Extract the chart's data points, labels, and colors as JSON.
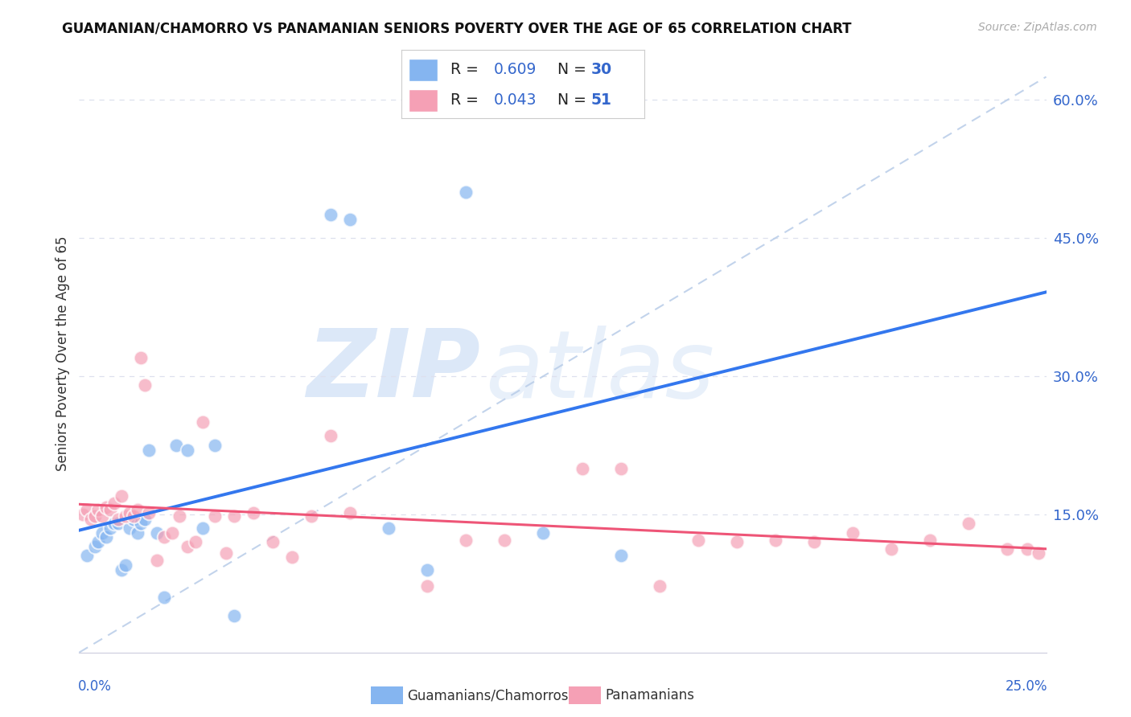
{
  "title": "GUAMANIAN/CHAMORRO VS PANAMANIAN SENIORS POVERTY OVER THE AGE OF 65 CORRELATION CHART",
  "source": "Source: ZipAtlas.com",
  "ylabel": "Seniors Poverty Over the Age of 65",
  "yticks": [
    0.0,
    0.15,
    0.3,
    0.45,
    0.6
  ],
  "ytick_labels": [
    "",
    "15.0%",
    "30.0%",
    "45.0%",
    "60.0%"
  ],
  "xlim": [
    0.0,
    0.25
  ],
  "ylim": [
    0.0,
    0.65
  ],
  "guamanian_color": "#85b5f0",
  "panamanian_color": "#f5a0b5",
  "blue_line_color": "#3377ee",
  "pink_line_color": "#ee5577",
  "ref_line_color": "#b8cce8",
  "legend_text_color": "#3366cc",
  "background_color": "#ffffff",
  "grid_color": "#dde0ee",
  "title_fontsize": 12,
  "axis_label_color": "#3366cc",
  "watermark_zip_color": "#dce8f8",
  "watermark_atlas_color": "#e8f0fa",
  "guamanian_x": [
    0.002,
    0.004,
    0.005,
    0.006,
    0.007,
    0.008,
    0.009,
    0.01,
    0.011,
    0.012,
    0.013,
    0.014,
    0.015,
    0.016,
    0.017,
    0.018,
    0.02,
    0.022,
    0.025,
    0.028,
    0.032,
    0.035,
    0.04,
    0.065,
    0.07,
    0.08,
    0.09,
    0.1,
    0.12,
    0.14
  ],
  "guamanian_y": [
    0.105,
    0.115,
    0.12,
    0.13,
    0.125,
    0.135,
    0.14,
    0.14,
    0.09,
    0.095,
    0.135,
    0.145,
    0.13,
    0.14,
    0.145,
    0.22,
    0.13,
    0.06,
    0.225,
    0.22,
    0.135,
    0.225,
    0.04,
    0.475,
    0.47,
    0.135,
    0.09,
    0.5,
    0.13,
    0.105
  ],
  "panamanian_x": [
    0.001,
    0.002,
    0.003,
    0.004,
    0.005,
    0.006,
    0.007,
    0.008,
    0.009,
    0.01,
    0.011,
    0.012,
    0.013,
    0.014,
    0.015,
    0.016,
    0.017,
    0.018,
    0.02,
    0.022,
    0.024,
    0.026,
    0.028,
    0.03,
    0.032,
    0.035,
    0.038,
    0.04,
    0.045,
    0.05,
    0.055,
    0.06,
    0.065,
    0.07,
    0.09,
    0.1,
    0.11,
    0.13,
    0.14,
    0.15,
    0.16,
    0.17,
    0.18,
    0.19,
    0.2,
    0.21,
    0.22,
    0.23,
    0.24,
    0.245,
    0.248
  ],
  "panamanian_y": [
    0.15,
    0.155,
    0.145,
    0.148,
    0.155,
    0.148,
    0.158,
    0.155,
    0.162,
    0.145,
    0.17,
    0.148,
    0.152,
    0.148,
    0.155,
    0.32,
    0.29,
    0.152,
    0.1,
    0.125,
    0.13,
    0.148,
    0.115,
    0.12,
    0.25,
    0.148,
    0.108,
    0.148,
    0.152,
    0.12,
    0.104,
    0.148,
    0.235,
    0.152,
    0.072,
    0.122,
    0.122,
    0.2,
    0.2,
    0.072,
    0.122,
    0.12,
    0.122,
    0.12,
    0.13,
    0.112,
    0.122,
    0.14,
    0.112,
    0.112,
    0.108
  ]
}
